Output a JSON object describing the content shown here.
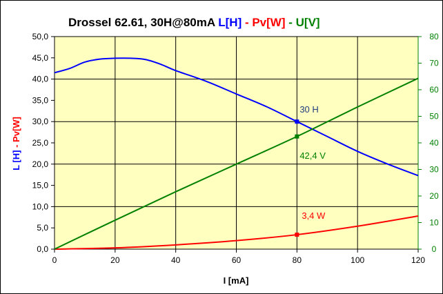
{
  "chart_data": {
    "type": "line",
    "title": {
      "main": "Drossel 62.61, 30H@80mA",
      "parts": [
        {
          "text": "L[H]",
          "color": "#0000ff"
        },
        {
          "text": " - ",
          "color": "#ff0000"
        },
        {
          "text": "Pv[W]",
          "color": "#ff0000"
        },
        {
          "text": " - ",
          "color": "#008000"
        },
        {
          "text": "U[V]",
          "color": "#008000"
        }
      ]
    },
    "xlabel": "I [mA]",
    "ylabel_left": {
      "parts": [
        {
          "text": "L [H]",
          "color": "#0000ff"
        },
        {
          "text": " - ",
          "color": "#ff0000"
        },
        {
          "text": "Pv[W]",
          "color": "#ff0000"
        }
      ]
    },
    "xlim": [
      0,
      120
    ],
    "ylim_left": [
      0,
      50
    ],
    "ylim_right": [
      0,
      80
    ],
    "x_ticks": [
      "0",
      "20",
      "40",
      "60",
      "80",
      "100",
      "120"
    ],
    "y_ticks_left": [
      "0,0",
      "5,0",
      "10,0",
      "15,0",
      "20,0",
      "25,0",
      "30,0",
      "35,0",
      "40,0",
      "45,0",
      "50,0"
    ],
    "y_ticks_right": [
      "0",
      "10",
      "20",
      "30",
      "40",
      "50",
      "60",
      "70",
      "80"
    ],
    "grid": true,
    "plot_background": "#ffffc0",
    "series": [
      {
        "axis": "left",
        "color": "#0000ff",
        "x": [
          0,
          5,
          10,
          15,
          20,
          25,
          30,
          35,
          40,
          50,
          60,
          70,
          80,
          90,
          100,
          110,
          120
        ],
        "y": [
          41.5,
          42.5,
          44.0,
          44.7,
          44.9,
          44.9,
          44.6,
          43.5,
          42.0,
          39.5,
          36.5,
          33.5,
          30.0,
          26.5,
          23.0,
          20.0,
          17.3
        ]
      },
      {
        "axis": "left",
        "color": "#ff0000",
        "x": [
          0,
          20,
          40,
          60,
          80,
          100,
          120
        ],
        "y": [
          0.0,
          0.3,
          1.0,
          2.0,
          3.4,
          5.4,
          7.8
        ]
      },
      {
        "axis": "right",
        "color": "#008000",
        "x": [
          0,
          20,
          40,
          60,
          80,
          100,
          120
        ],
        "y": [
          0.0,
          10.9,
          21.6,
          32.0,
          42.4,
          53.5,
          64.3
        ]
      }
    ],
    "markers": [
      {
        "x": 80,
        "y": 30.0,
        "axis": "left",
        "color": "#0000ff"
      },
      {
        "x": 80,
        "y": 42.4,
        "axis": "right",
        "color": "#008000"
      },
      {
        "x": 80,
        "y": 3.4,
        "axis": "left",
        "color": "#ff0000"
      }
    ],
    "annotations": [
      {
        "text": "30 H",
        "color": "#1f3f7f"
      },
      {
        "text": "42,4 V",
        "color": "#008000"
      },
      {
        "text": "3,4 W",
        "color": "#ff0000"
      }
    ]
  }
}
